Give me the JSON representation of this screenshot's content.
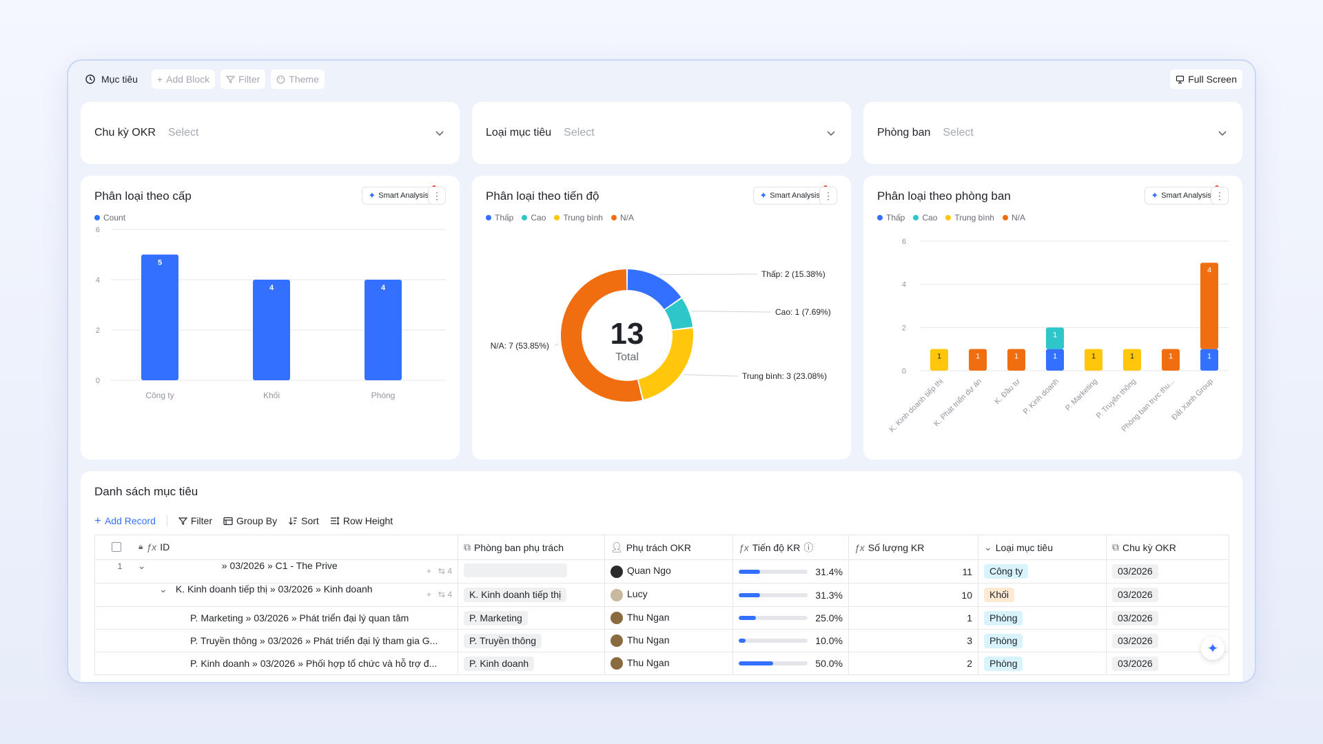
{
  "toolbar": {
    "title": "Mục tiêu",
    "add_block": "Add Block",
    "filter": "Filter",
    "theme": "Theme",
    "full_screen": "Full Screen"
  },
  "filters": [
    {
      "label": "Chu kỳ OKR",
      "value": "Select"
    },
    {
      "label": "Loại mục tiêu",
      "value": "Select"
    },
    {
      "label": "Phòng ban",
      "value": "Select"
    }
  ],
  "smart_analysis_label": "Smart Analysis",
  "colors": {
    "blue": "#3370ff",
    "teal": "#2ec7c9",
    "yellow": "#ffc60a",
    "orange": "#f06e10"
  },
  "chart1": {
    "title": "Phân loại theo cấp",
    "legend": [
      {
        "name": "Count",
        "color": "#3370ff"
      }
    ]
  },
  "chart2": {
    "title": "Phân loại theo tiến độ",
    "legend": [
      {
        "name": "Thấp",
        "color": "#3370ff"
      },
      {
        "name": "Cao",
        "color": "#2ec7c9"
      },
      {
        "name": "Trung bình",
        "color": "#ffc60a"
      },
      {
        "name": "N/A",
        "color": "#f06e10"
      }
    ],
    "center_value": "13",
    "center_label": "Total"
  },
  "chart3": {
    "title": "Phân loại theo phòng ban",
    "legend": [
      {
        "name": "Thấp",
        "color": "#3370ff"
      },
      {
        "name": "Cao",
        "color": "#2ec7c9"
      },
      {
        "name": "Trung bình",
        "color": "#ffc60a"
      },
      {
        "name": "N/A",
        "color": "#f06e10"
      }
    ]
  },
  "chart_data": [
    {
      "type": "bar",
      "title": "Phân loại theo cấp",
      "categories": [
        "Công ty",
        "Khối",
        "Phòng"
      ],
      "series": [
        {
          "name": "Count",
          "values": [
            5,
            4,
            4
          ]
        }
      ],
      "ylim": [
        0,
        6
      ],
      "yticks": [
        0,
        2,
        4,
        6
      ],
      "grid": true,
      "legend": "top-left"
    },
    {
      "type": "pie",
      "title": "Phân loại theo tiến độ",
      "slices": [
        {
          "name": "Thấp",
          "value": 2,
          "label": "Thấp: 2 (15.38%)"
        },
        {
          "name": "Cao",
          "value": 1,
          "label": "Cao: 1 (7.69%)"
        },
        {
          "name": "Trung bình",
          "value": 3,
          "label": "Trung bình: 3 (23.08%)"
        },
        {
          "name": "N/A",
          "value": 7,
          "label": "N/A: 7 (53.85%)"
        }
      ],
      "total": 13,
      "legend": "top-left"
    },
    {
      "type": "bar",
      "stacked": true,
      "title": "Phân loại theo phòng ban",
      "categories": [
        "K. Kinh doanh tiếp thị",
        "K. Phát triển dự án",
        "K. Đầu tư",
        "P. Kinh doanh",
        "P. Marketing",
        "P. Truyền thông",
        "Phòng ban trực thu...",
        "Đất Xanh Group"
      ],
      "series": [
        {
          "name": "Thấp",
          "values": [
            0,
            0,
            0,
            1,
            0,
            0,
            0,
            1
          ]
        },
        {
          "name": "Cao",
          "values": [
            0,
            0,
            0,
            1,
            0,
            0,
            0,
            0
          ]
        },
        {
          "name": "Trung bình",
          "values": [
            1,
            0,
            0,
            0,
            1,
            1,
            0,
            0
          ]
        },
        {
          "name": "N/A",
          "values": [
            0,
            1,
            1,
            0,
            0,
            0,
            1,
            4
          ]
        }
      ],
      "ylim": [
        0,
        6
      ],
      "yticks": [
        0,
        2,
        4,
        6
      ],
      "grid": true,
      "legend": "top-left"
    }
  ],
  "table": {
    "title": "Danh sách mục tiêu",
    "tools": {
      "add_record": "Add Record",
      "filter": "Filter",
      "group_by": "Group By",
      "sort": "Sort",
      "row_height": "Row Height"
    },
    "columns": [
      "ID",
      "Phòng ban phụ trách",
      "Phụ trách OKR",
      "Tiến độ KR",
      "Số lượng KR",
      "Loại mục tiêu",
      "Chu kỳ OKR"
    ],
    "rows": [
      {
        "index": "1",
        "id": "» 03/2026 » C1 - The Prive",
        "children": "4",
        "dept": "",
        "owner": "Quan Ngo",
        "progress": 0.314,
        "progress_text": "31.4%",
        "kr_count": "11",
        "type": "Công ty",
        "cycle": "03/2026"
      },
      {
        "index": "",
        "id": "K. Kinh doanh tiếp thị » 03/2026 » Kinh doanh",
        "children": "4",
        "dept": "K. Kinh doanh tiếp thị",
        "owner": "Lucy",
        "progress": 0.313,
        "progress_text": "31.3%",
        "kr_count": "10",
        "type": "Khối",
        "cycle": "03/2026"
      },
      {
        "index": "",
        "id": "P. Marketing » 03/2026 » Phát triển đại lý quan tâm",
        "children": "",
        "dept": "P. Marketing",
        "owner": "Thu Ngan",
        "progress": 0.25,
        "progress_text": "25.0%",
        "kr_count": "1",
        "type": "Phòng",
        "cycle": "03/2026"
      },
      {
        "index": "",
        "id": "P. Truyền thông » 03/2026 » Phát triển đại lý tham gia G...",
        "children": "",
        "dept": "P. Truyền thông",
        "owner": "Thu Ngan",
        "progress": 0.1,
        "progress_text": "10.0%",
        "kr_count": "3",
        "type": "Phòng",
        "cycle": "03/2026"
      },
      {
        "index": "",
        "id": "P. Kinh doanh » 03/2026 » Phối hợp tổ chức và hỗ trợ đ...",
        "children": "",
        "dept": "P. Kinh doanh",
        "owner": "Thu Ngan",
        "progress": 0.5,
        "progress_text": "50.0%",
        "kr_count": "2",
        "type": "Phòng",
        "cycle": "03/2026"
      }
    ]
  }
}
